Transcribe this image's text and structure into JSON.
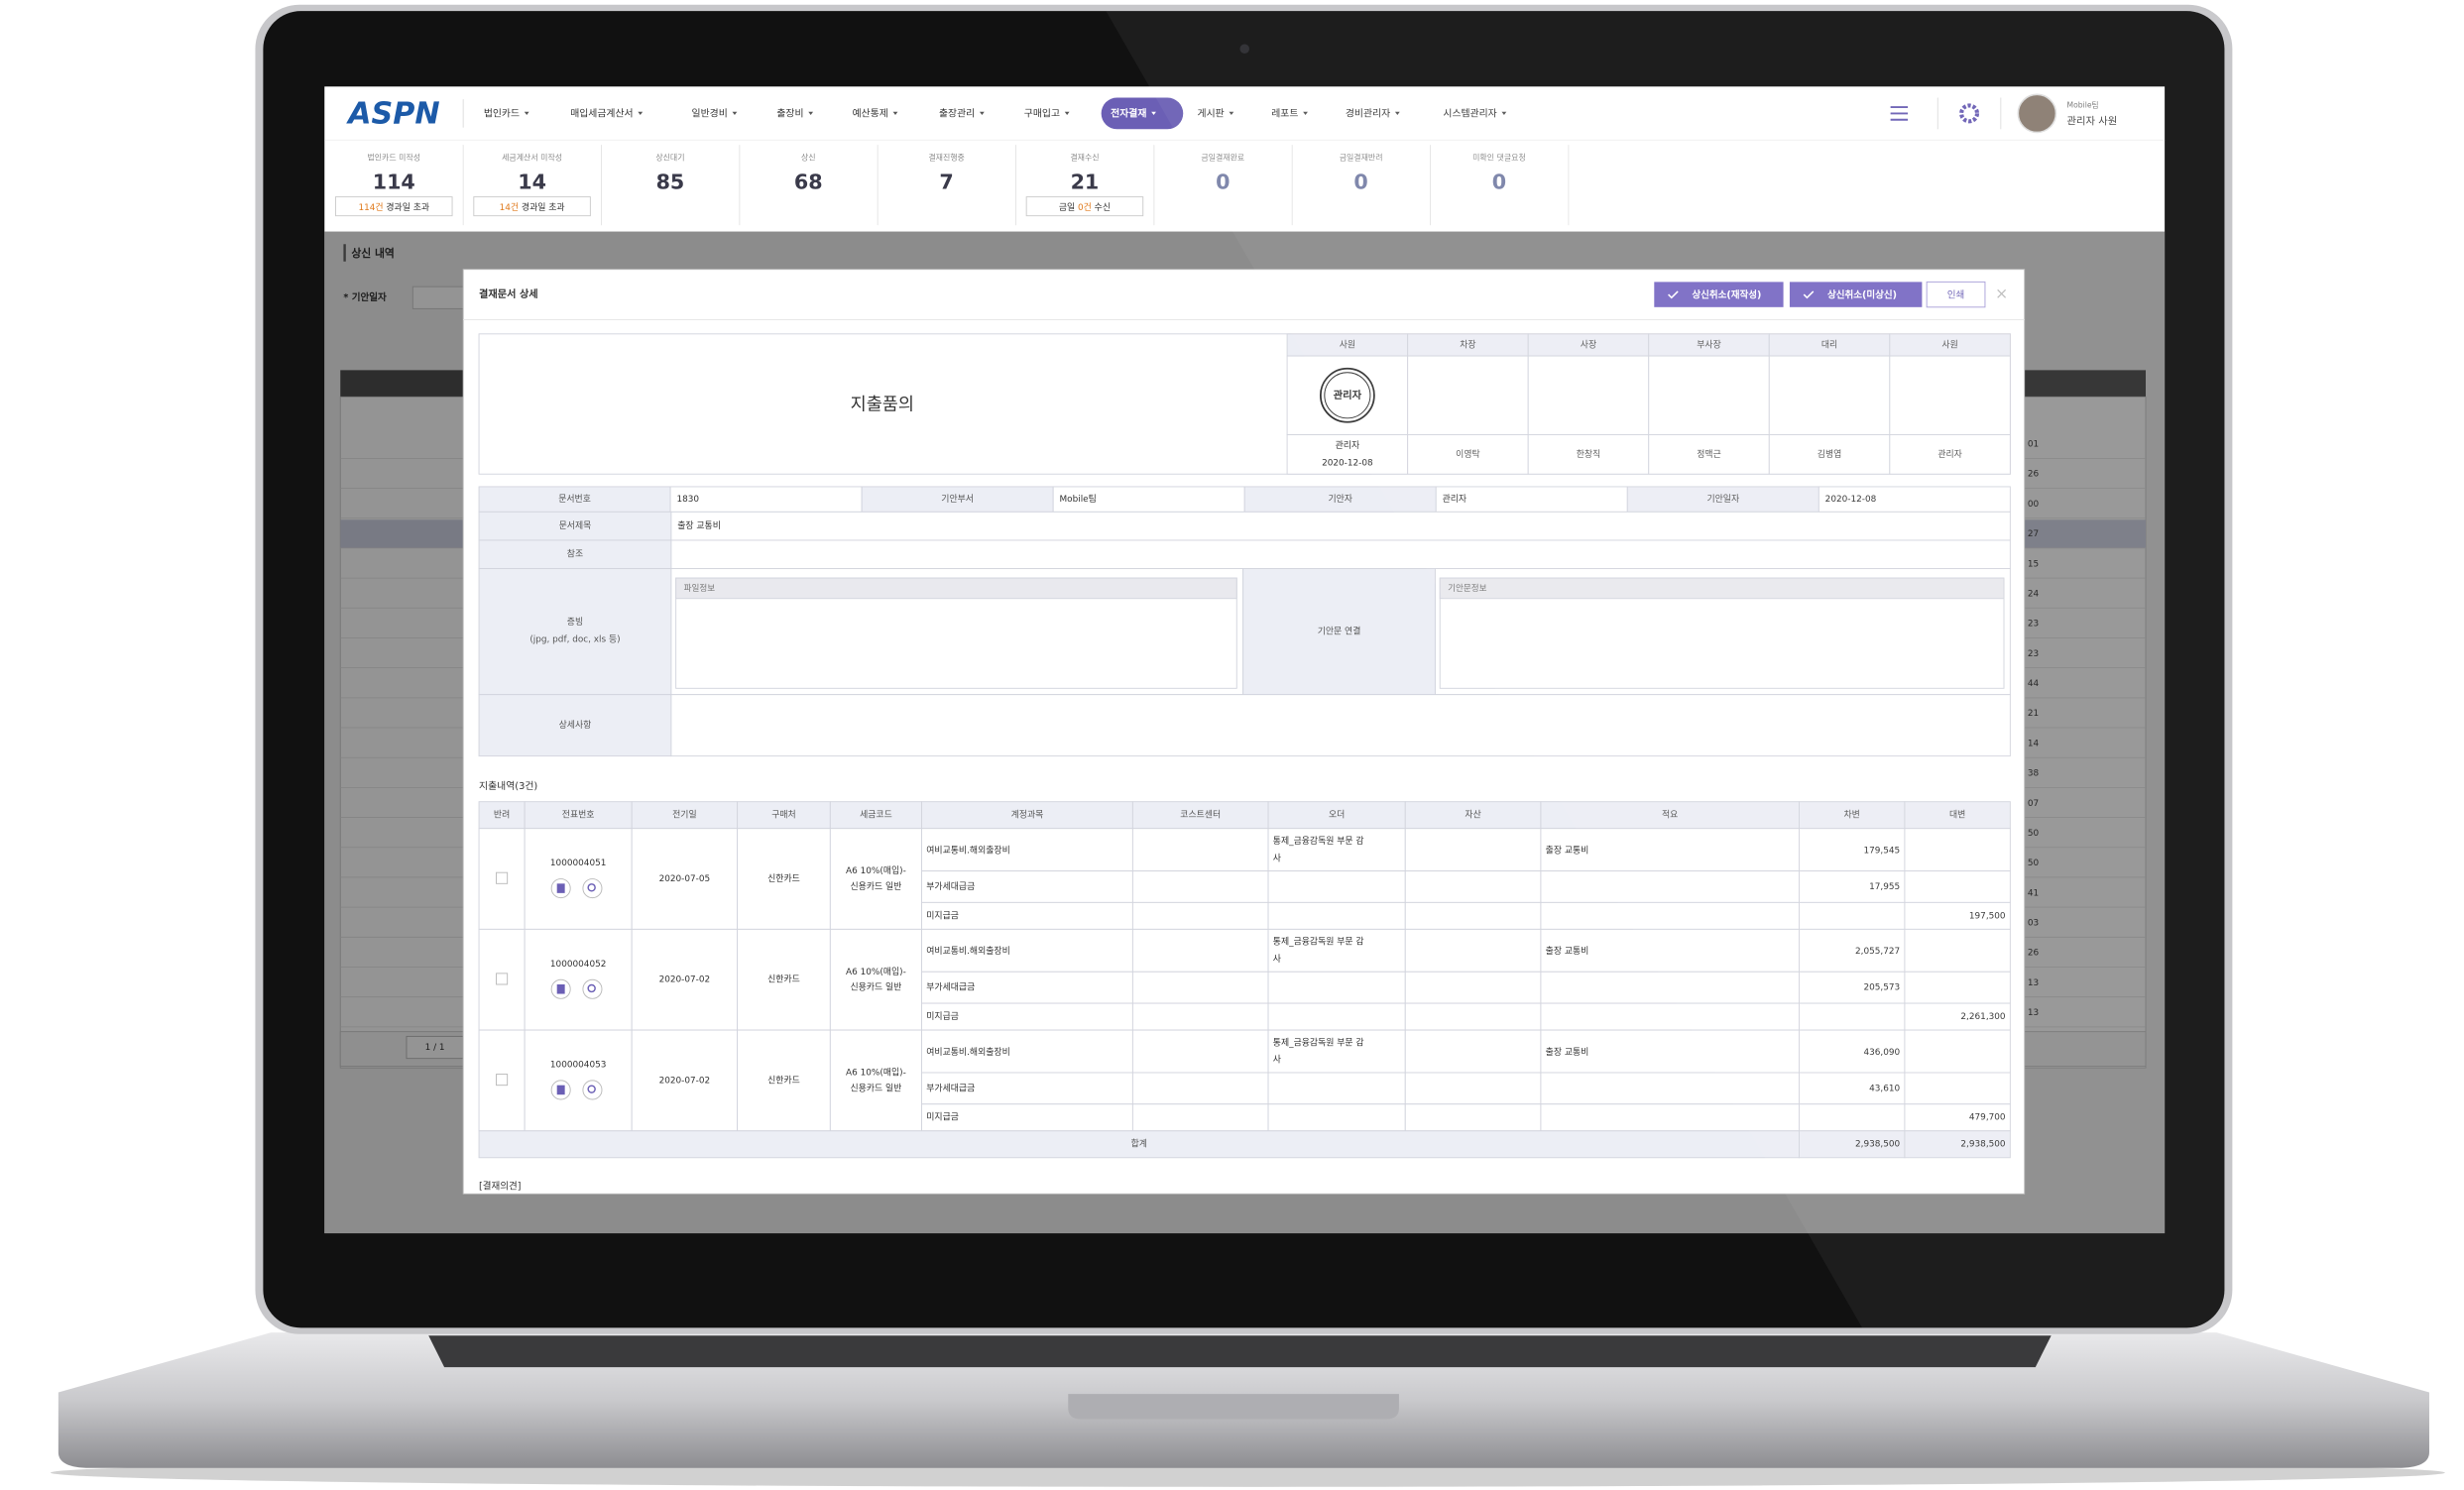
{
  "nav": {
    "logo": "ASPN",
    "menu": [
      {
        "label": "법인카드"
      },
      {
        "label": "매입세금계산서"
      },
      {
        "label": "일반경비"
      },
      {
        "label": "출장비"
      },
      {
        "label": "예산통제"
      },
      {
        "label": "출장관리"
      },
      {
        "label": "구매입고"
      },
      {
        "label": "전자결재",
        "active": true
      },
      {
        "label": "게시판"
      },
      {
        "label": "레포트"
      },
      {
        "label": "경비관리자"
      },
      {
        "label": "시스템관리자"
      }
    ],
    "user_team": "Mobile팀",
    "user_name": "관리자 사원"
  },
  "stats": [
    {
      "label": "법인카드 미작성",
      "value": 114,
      "note": [
        {
          "text": "114건",
          "accent": true
        },
        {
          "text": " 경과일 초과"
        }
      ]
    },
    {
      "label": "세금계산서 미작성",
      "value": 14,
      "note": [
        {
          "text": "14건",
          "accent": true
        },
        {
          "text": " 경과일 초과"
        }
      ]
    },
    {
      "label": "상신대기",
      "value": 85
    },
    {
      "label": "상신",
      "value": 68
    },
    {
      "label": "결재진행중",
      "value": 7
    },
    {
      "label": "결재수신",
      "value": 21,
      "note": [
        {
          "text": "금일 "
        },
        {
          "text": "0건",
          "accent": true
        },
        {
          "text": " 수신"
        }
      ]
    },
    {
      "label": "금일결재완료",
      "value": 0
    },
    {
      "label": "금일결재반려",
      "value": 0
    },
    {
      "label": "미확인 댓글요청",
      "value": 0
    }
  ],
  "page": {
    "section_title": "상신 내역",
    "filter_label": "* 기안일자",
    "right_column": [
      "01",
      "26",
      "00",
      "27",
      "15",
      "24",
      "23",
      "23",
      "44",
      "21",
      "14",
      "38",
      "07",
      "50",
      "50",
      "41",
      "03",
      "26",
      "13",
      "13"
    ],
    "pager": "1 / 1"
  },
  "modal": {
    "title": "결재문서 상세",
    "buttons": [
      "상신취소(재작성)",
      "상신취소(미상신)",
      "인쇄"
    ],
    "doc_title": "지출품의",
    "approvals": [
      {
        "role": "사원",
        "stamp": "관리자",
        "name": "관리자",
        "date": "2020-12-08"
      },
      {
        "role": "차장",
        "name": "이영탁"
      },
      {
        "role": "사장",
        "name": "한창직"
      },
      {
        "role": "부사장",
        "name": "정맥근"
      },
      {
        "role": "대리",
        "name": "김병엽"
      },
      {
        "role": "사원",
        "name": "관리자"
      }
    ],
    "info": {
      "doc_no_label": "문서번호",
      "doc_no": "1830",
      "dept_label": "기안부서",
      "dept": "Mobile팀",
      "drafter_label": "기안자",
      "drafter": "관리자",
      "date_label": "기안일자",
      "date": "2020-12-08",
      "subject_label": "문서제목",
      "subject": "출장 교통비",
      "ref_label": "참조",
      "evidence_label": "증빙",
      "evidence_hint": "(jpg, pdf, doc, xls 등)",
      "file_info": "파일정보",
      "link_label": "기안문 연결",
      "link_info": "기안문정보",
      "detail_label": "상세사항"
    },
    "expenses": {
      "title": "지출내역(3건)",
      "headers": [
        "반려",
        "전표번호",
        "전기일",
        "구매처",
        "세금코드",
        "계정과목",
        "코스트센터",
        "오더",
        "자산",
        "적요",
        "차변",
        "대변"
      ],
      "groups": [
        {
          "voucher": "1000004051",
          "date": "2020-07-05",
          "vendor": "신한카드",
          "tax_code": [
            "A6 10%(매입)-",
            "신용카드 일반"
          ],
          "lines": [
            {
              "account": "여비교통비.해외출장비",
              "order": [
                "통제_금융감독원 부문 감",
                "사"
              ],
              "memo": "출장 교통비",
              "debit": "179,545"
            },
            {
              "account": "부가세대급금",
              "debit": "17,955"
            },
            {
              "account": "미지급금",
              "credit": "197,500"
            }
          ]
        },
        {
          "voucher": "1000004052",
          "date": "2020-07-02",
          "vendor": "신한카드",
          "tax_code": [
            "A6 10%(매입)-",
            "신용카드 일반"
          ],
          "lines": [
            {
              "account": "여비교통비.해외출장비",
              "order": [
                "통제_금융감독원 부문 감",
                "사"
              ],
              "memo": "출장 교통비",
              "debit": "2,055,727"
            },
            {
              "account": "부가세대급금",
              "debit": "205,573"
            },
            {
              "account": "미지급금",
              "credit": "2,261,300"
            }
          ]
        },
        {
          "voucher": "1000004053",
          "date": "2020-07-02",
          "vendor": "신한카드",
          "tax_code": [
            "A6 10%(매입)-",
            "신용카드 일반"
          ],
          "lines": [
            {
              "account": "여비교통비.해외출장비",
              "order": [
                "통제_금융감독원 부문 감",
                "사"
              ],
              "memo": "출장 교통비",
              "debit": "436,090"
            },
            {
              "account": "부가세대급금",
              "debit": "43,610"
            },
            {
              "account": "미지급금",
              "credit": "479,700"
            }
          ]
        }
      ],
      "total": {
        "label": "합계",
        "debit": "2,938,500",
        "credit": "2,938,500"
      }
    },
    "opinion_title": "[결재의견]"
  }
}
